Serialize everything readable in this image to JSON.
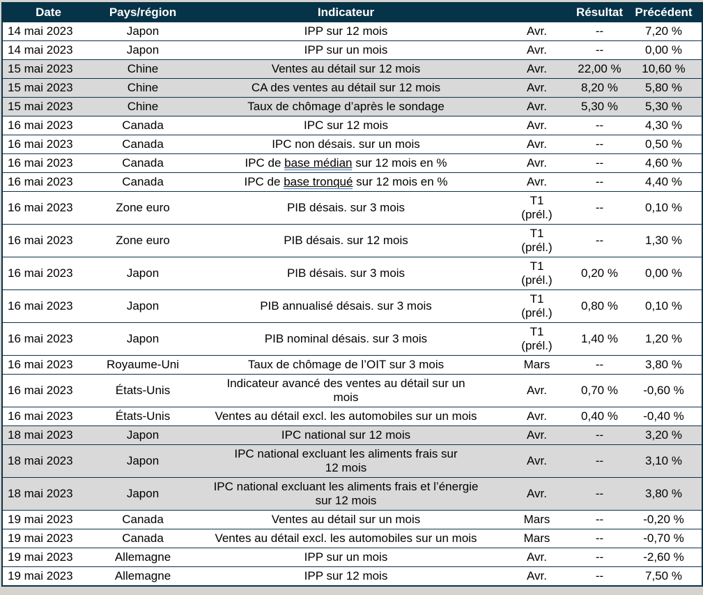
{
  "colors": {
    "header_bg": "#073349",
    "header_text": "#ffffff",
    "border": "#073349",
    "row_white": "#ffffff",
    "row_gray": "#d9d9d9",
    "page_bg": "#d6d3ce",
    "link_underline": "#4472c4"
  },
  "table": {
    "columns": [
      "Date",
      "Pays/région",
      "Indicateur",
      "",
      "Résultat",
      "Précédent"
    ],
    "rows": [
      {
        "date": "14 mai 2023",
        "region": "Japon",
        "indicator": "IPP sur 12 mois",
        "period": "Avr.",
        "result": "--",
        "previous": "7,20 %",
        "shade": "white"
      },
      {
        "date": "14 mai 2023",
        "region": "Japon",
        "indicator": "IPP sur un mois",
        "period": "Avr.",
        "result": "--",
        "previous": "0,00 %",
        "shade": "white"
      },
      {
        "date": "15 mai 2023",
        "region": "Chine",
        "indicator": "Ventes au détail sur 12 mois",
        "period": "Avr.",
        "result": "22,00 %",
        "previous": "10,60 %",
        "shade": "gray"
      },
      {
        "date": "15 mai 2023",
        "region": "Chine",
        "indicator": "CA des ventes au détail sur 12 mois",
        "period": "Avr.",
        "result": "8,20 %",
        "previous": "5,80 %",
        "shade": "gray"
      },
      {
        "date": "15 mai 2023",
        "region": "Chine",
        "indicator": "Taux de chômage d’après le sondage",
        "period": "Avr.",
        "result": "5,30 %",
        "previous": "5,30 %",
        "shade": "gray"
      },
      {
        "date": "16 mai 2023",
        "region": "Canada",
        "indicator": "IPC sur 12 mois",
        "period": "Avr.",
        "result": "--",
        "previous": "4,30 %",
        "shade": "white"
      },
      {
        "date": "16 mai 2023",
        "region": "Canada",
        "indicator": "IPC non désais. sur un mois",
        "period": "Avr.",
        "result": "--",
        "previous": "0,50 %",
        "shade": "white"
      },
      {
        "date": "16 mai 2023",
        "region": "Canada",
        "indicator": "IPC de base médian sur 12 mois en %",
        "link_terms": [
          "base médian"
        ],
        "period": "Avr.",
        "result": "--",
        "previous": "4,60 %",
        "shade": "white"
      },
      {
        "date": "16 mai 2023",
        "region": "Canada",
        "indicator": "IPC de base tronqué sur 12 mois en %",
        "link_terms": [
          "base tronqué"
        ],
        "period": "Avr.",
        "result": "--",
        "previous": "4,40 %",
        "shade": "white"
      },
      {
        "date": "16 mai 2023",
        "region": "Zone euro",
        "indicator": "PIB désais. sur 3 mois",
        "period": "T1\n(prél.)",
        "result": "--",
        "previous": "0,10 %",
        "shade": "white"
      },
      {
        "date": "16 mai 2023",
        "region": "Zone euro",
        "indicator": "PIB désais. sur 12 mois",
        "period": "T1\n(prél.)",
        "result": "--",
        "previous": "1,30 %",
        "shade": "white"
      },
      {
        "date": "16 mai 2023",
        "region": "Japon",
        "indicator": "PIB désais. sur 3 mois",
        "period": "T1\n(prél.)",
        "result": "0,20 %",
        "previous": "0,00 %",
        "shade": "white"
      },
      {
        "date": "16 mai 2023",
        "region": "Japon",
        "indicator": "PIB annualisé désais. sur 3 mois",
        "period": "T1\n(prél.)",
        "result": "0,80 %",
        "previous": "0,10 %",
        "shade": "white"
      },
      {
        "date": "16 mai 2023",
        "region": "Japon",
        "indicator": "PIB nominal désais. sur 3 mois",
        "period": "T1\n(prél.)",
        "result": "1,40 %",
        "previous": "1,20 %",
        "shade": "white"
      },
      {
        "date": "16 mai 2023",
        "region": "Royaume-Uni",
        "indicator": "Taux de chômage de l’OIT sur 3 mois",
        "period": "Mars",
        "result": "--",
        "previous": "3,80 %",
        "shade": "white"
      },
      {
        "date": "16 mai 2023",
        "region": "États-Unis",
        "indicator": "Indicateur avancé des ventes au détail sur un\nmois",
        "period": "Avr.",
        "result": "0,70 %",
        "previous": "-0,60 %",
        "shade": "white"
      },
      {
        "date": "16 mai 2023",
        "region": "États-Unis",
        "indicator": "Ventes au détail excl. les automobiles sur un mois",
        "period": "Avr.",
        "result": "0,40 %",
        "previous": "-0,40 %",
        "shade": "white"
      },
      {
        "date": "18 mai 2023",
        "region": "Japon",
        "indicator": "IPC national sur 12 mois",
        "period": "Avr.",
        "result": "--",
        "previous": "3,20 %",
        "shade": "gray"
      },
      {
        "date": "18 mai 2023",
        "region": "Japon",
        "indicator": "IPC national excluant les aliments frais sur\n12 mois",
        "period": "Avr.",
        "result": "--",
        "previous": "3,10 %",
        "shade": "gray"
      },
      {
        "date": "18 mai 2023",
        "region": "Japon",
        "indicator": "IPC national excluant les aliments frais et l’énergie\nsur 12 mois",
        "period": "Avr.",
        "result": "--",
        "previous": "3,80 %",
        "shade": "gray"
      },
      {
        "date": "19 mai 2023",
        "region": "Canada",
        "indicator": "Ventes au détail sur un mois",
        "period": "Mars",
        "result": "--",
        "previous": "-0,20 %",
        "shade": "white"
      },
      {
        "date": "19 mai 2023",
        "region": "Canada",
        "indicator": "Ventes au détail excl. les automobiles sur un mois",
        "period": "Mars",
        "result": "--",
        "previous": "-0,70 %",
        "shade": "white"
      },
      {
        "date": "19 mai 2023",
        "region": "Allemagne",
        "indicator": "IPP sur un mois",
        "period": "Avr.",
        "result": "--",
        "previous": "-2,60 %",
        "shade": "white"
      },
      {
        "date": "19 mai 2023",
        "region": "Allemagne",
        "indicator": "IPP sur 12 mois",
        "period": "Avr.",
        "result": "--",
        "previous": "7,50 %",
        "shade": "white"
      }
    ]
  }
}
